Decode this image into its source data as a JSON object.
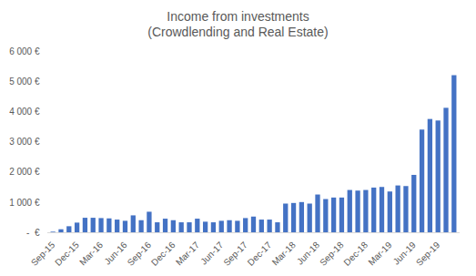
{
  "chart_data": {
    "type": "bar",
    "title": "Income from investments",
    "subtitle": "(Crowdlending and Real Estate)",
    "categories": [
      "Sep-15",
      null,
      null,
      "Dec-15",
      null,
      null,
      "Mar-16",
      null,
      null,
      "Jun-16",
      null,
      null,
      "Sep-16",
      null,
      null,
      "Dec-16",
      null,
      null,
      "Mar-17",
      null,
      null,
      "Jun-17",
      null,
      null,
      "Sep-17",
      null,
      null,
      "Dec-17",
      null,
      null,
      "Mar-18",
      null,
      null,
      "Jun-18",
      null,
      null,
      "Sep-18",
      null,
      null,
      "Dec-18",
      null,
      null,
      "Mar-19",
      null,
      null,
      "Jun-19",
      null,
      null,
      "Sep-19",
      null,
      null
    ],
    "values": [
      20,
      100,
      200,
      320,
      480,
      480,
      470,
      460,
      420,
      380,
      560,
      400,
      680,
      330,
      450,
      400,
      330,
      330,
      450,
      350,
      330,
      380,
      400,
      380,
      470,
      520,
      420,
      420,
      330,
      950,
      970,
      1000,
      950,
      1250,
      1100,
      1150,
      1150,
      1400,
      1380,
      1400,
      1480,
      1500,
      1350,
      1550,
      1530,
      1900,
      3400,
      3750,
      3700,
      4120,
      5200
    ],
    "color": "#4472c4",
    "ylim": [
      0,
      6000
    ],
    "yticks": [
      {
        "value": 0,
        "label": "-  €"
      },
      {
        "value": 1000,
        "label": "1 000 €"
      },
      {
        "value": 2000,
        "label": "2 000 €"
      },
      {
        "value": 3000,
        "label": "3 000 €"
      },
      {
        "value": 4000,
        "label": "4 000 €"
      },
      {
        "value": 5000,
        "label": "5 000 €"
      },
      {
        "value": 6000,
        "label": "6 000 €"
      }
    ],
    "grid": false
  }
}
